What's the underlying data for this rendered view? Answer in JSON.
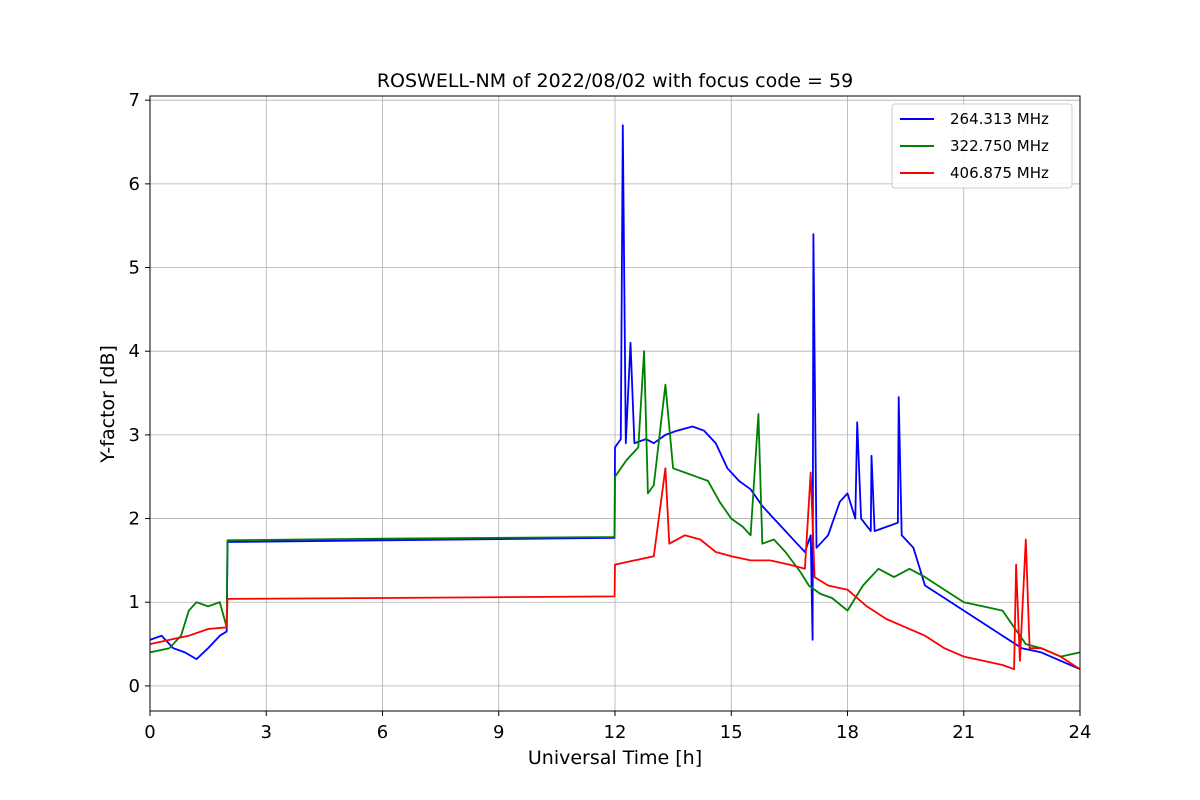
{
  "chart_data": {
    "type": "line",
    "title": "ROSWELL-NM of 2022/08/02 with focus code = 59",
    "xlabel": "Universal Time [h]",
    "ylabel": "Y-factor [dB]",
    "xlim": [
      0,
      24
    ],
    "ylim": [
      -0.3,
      7.05
    ],
    "xticks": [
      0,
      3,
      6,
      9,
      12,
      15,
      18,
      21,
      24
    ],
    "yticks": [
      0,
      1,
      2,
      3,
      4,
      5,
      6,
      7
    ],
    "grid": true,
    "legend_position": "top-right",
    "series": [
      {
        "name": "264.313 MHz",
        "color": "#0000ff",
        "points": [
          [
            0,
            0.55
          ],
          [
            0.3,
            0.6
          ],
          [
            0.6,
            0.45
          ],
          [
            0.9,
            0.4
          ],
          [
            1.2,
            0.32
          ],
          [
            1.5,
            0.45
          ],
          [
            1.8,
            0.6
          ],
          [
            1.98,
            0.65
          ],
          [
            2.0,
            1.72
          ],
          [
            6.0,
            1.74
          ],
          [
            11.99,
            1.77
          ],
          [
            12.0,
            2.85
          ],
          [
            12.15,
            2.95
          ],
          [
            12.2,
            6.7
          ],
          [
            12.28,
            2.9
          ],
          [
            12.4,
            4.1
          ],
          [
            12.5,
            2.9
          ],
          [
            12.8,
            2.95
          ],
          [
            13.0,
            2.9
          ],
          [
            13.3,
            3.0
          ],
          [
            13.6,
            3.05
          ],
          [
            14.0,
            3.1
          ],
          [
            14.3,
            3.05
          ],
          [
            14.6,
            2.9
          ],
          [
            14.9,
            2.6
          ],
          [
            15.2,
            2.45
          ],
          [
            15.5,
            2.35
          ],
          [
            15.8,
            2.15
          ],
          [
            16.1,
            2.0
          ],
          [
            16.4,
            1.85
          ],
          [
            16.7,
            1.7
          ],
          [
            16.9,
            1.6
          ],
          [
            17.05,
            1.8
          ],
          [
            17.1,
            0.55
          ],
          [
            17.12,
            5.4
          ],
          [
            17.2,
            1.65
          ],
          [
            17.5,
            1.8
          ],
          [
            17.8,
            2.2
          ],
          [
            18.0,
            2.3
          ],
          [
            18.2,
            2.0
          ],
          [
            18.25,
            3.15
          ],
          [
            18.35,
            2.0
          ],
          [
            18.6,
            1.85
          ],
          [
            18.62,
            2.75
          ],
          [
            18.7,
            1.85
          ],
          [
            19.0,
            1.9
          ],
          [
            19.3,
            1.95
          ],
          [
            19.32,
            3.45
          ],
          [
            19.4,
            1.8
          ],
          [
            19.7,
            1.65
          ],
          [
            20.0,
            1.2
          ],
          [
            20.5,
            1.05
          ],
          [
            21.0,
            0.9
          ],
          [
            21.5,
            0.75
          ],
          [
            22.0,
            0.6
          ],
          [
            22.5,
            0.45
          ],
          [
            23.0,
            0.4
          ],
          [
            23.5,
            0.3
          ],
          [
            24.0,
            0.2
          ]
        ]
      },
      {
        "name": "322.750 MHz",
        "color": "#008000",
        "points": [
          [
            0,
            0.4
          ],
          [
            0.5,
            0.45
          ],
          [
            0.8,
            0.6
          ],
          [
            1.0,
            0.9
          ],
          [
            1.2,
            1.0
          ],
          [
            1.5,
            0.95
          ],
          [
            1.8,
            1.0
          ],
          [
            1.98,
            0.7
          ],
          [
            2.0,
            1.74
          ],
          [
            6.0,
            1.76
          ],
          [
            11.99,
            1.78
          ],
          [
            12.0,
            2.5
          ],
          [
            12.3,
            2.7
          ],
          [
            12.6,
            2.85
          ],
          [
            12.75,
            4.0
          ],
          [
            12.85,
            2.3
          ],
          [
            13.0,
            2.4
          ],
          [
            13.3,
            3.6
          ],
          [
            13.5,
            2.6
          ],
          [
            13.8,
            2.55
          ],
          [
            14.1,
            2.5
          ],
          [
            14.4,
            2.45
          ],
          [
            14.7,
            2.2
          ],
          [
            15.0,
            2.0
          ],
          [
            15.3,
            1.9
          ],
          [
            15.5,
            1.8
          ],
          [
            15.7,
            3.25
          ],
          [
            15.8,
            1.7
          ],
          [
            16.1,
            1.75
          ],
          [
            16.4,
            1.6
          ],
          [
            16.8,
            1.35
          ],
          [
            17.0,
            1.2
          ],
          [
            17.3,
            1.1
          ],
          [
            17.6,
            1.05
          ],
          [
            18.0,
            0.9
          ],
          [
            18.4,
            1.2
          ],
          [
            18.8,
            1.4
          ],
          [
            19.2,
            1.3
          ],
          [
            19.6,
            1.4
          ],
          [
            20.0,
            1.3
          ],
          [
            20.5,
            1.15
          ],
          [
            21.0,
            1.0
          ],
          [
            21.5,
            0.95
          ],
          [
            22.0,
            0.9
          ],
          [
            22.3,
            0.7
          ],
          [
            22.6,
            0.5
          ],
          [
            23.0,
            0.45
          ],
          [
            23.5,
            0.35
          ],
          [
            24.0,
            0.4
          ]
        ]
      },
      {
        "name": "406.875 MHz",
        "color": "#ff0000",
        "points": [
          [
            0,
            0.5
          ],
          [
            0.5,
            0.55
          ],
          [
            1.0,
            0.6
          ],
          [
            1.5,
            0.68
          ],
          [
            1.98,
            0.7
          ],
          [
            2.0,
            1.04
          ],
          [
            6.0,
            1.05
          ],
          [
            11.99,
            1.07
          ],
          [
            12.0,
            1.45
          ],
          [
            12.5,
            1.5
          ],
          [
            13.0,
            1.55
          ],
          [
            13.3,
            2.6
          ],
          [
            13.4,
            1.7
          ],
          [
            13.8,
            1.8
          ],
          [
            14.2,
            1.75
          ],
          [
            14.6,
            1.6
          ],
          [
            15.0,
            1.55
          ],
          [
            15.5,
            1.5
          ],
          [
            16.0,
            1.5
          ],
          [
            16.5,
            1.45
          ],
          [
            16.9,
            1.4
          ],
          [
            17.05,
            2.55
          ],
          [
            17.15,
            1.3
          ],
          [
            17.5,
            1.2
          ],
          [
            18.0,
            1.15
          ],
          [
            18.5,
            0.95
          ],
          [
            19.0,
            0.8
          ],
          [
            19.5,
            0.7
          ],
          [
            20.0,
            0.6
          ],
          [
            20.5,
            0.45
          ],
          [
            21.0,
            0.35
          ],
          [
            21.5,
            0.3
          ],
          [
            22.0,
            0.25
          ],
          [
            22.3,
            0.2
          ],
          [
            22.35,
            1.45
          ],
          [
            22.45,
            0.3
          ],
          [
            22.6,
            1.75
          ],
          [
            22.7,
            0.45
          ],
          [
            23.0,
            0.45
          ],
          [
            23.5,
            0.35
          ],
          [
            24.0,
            0.2
          ]
        ]
      }
    ]
  }
}
